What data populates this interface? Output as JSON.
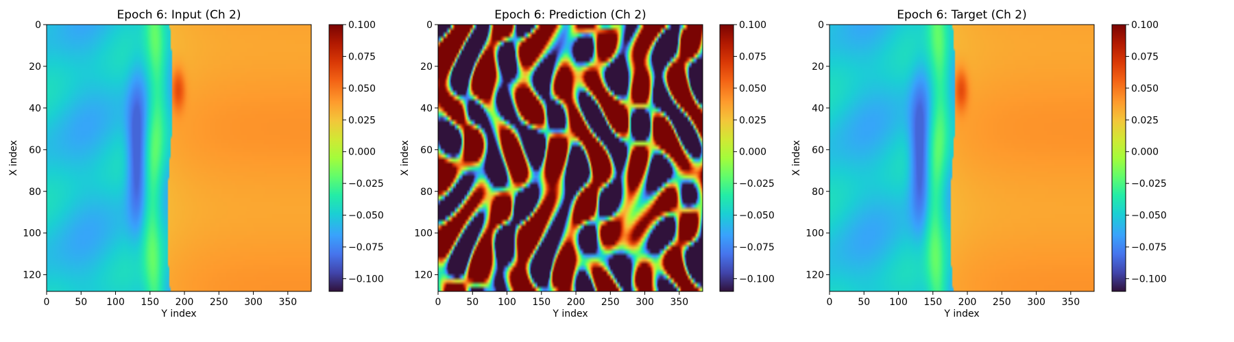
{
  "chart_data": [
    {
      "type": "heatmap",
      "title": "Epoch 6: Input (Ch 2)",
      "xlabel": "Y index",
      "ylabel": "X index",
      "xlim": [
        0,
        384
      ],
      "ylim": [
        128,
        0
      ],
      "xticks": [
        0,
        50,
        100,
        150,
        200,
        250,
        300,
        350
      ],
      "yticks": [
        0,
        20,
        40,
        60,
        80,
        100,
        120
      ],
      "colormap": "turbo",
      "color_range": [
        -0.11,
        0.1
      ],
      "colorbar_ticks": [
        "0.100",
        "0.075",
        "0.050",
        "0.025",
        "0.000",
        "−0.025",
        "−0.050",
        "−0.075",
        "−0.100"
      ],
      "colorbar_values": [
        0.1,
        0.075,
        0.05,
        0.025,
        0.0,
        -0.025,
        -0.05,
        -0.075,
        -0.1
      ],
      "field": "smooth"
    },
    {
      "type": "heatmap",
      "title": "Epoch 6: Prediction (Ch 2)",
      "xlabel": "Y index",
      "ylabel": "X index",
      "xlim": [
        0,
        384
      ],
      "ylim": [
        128,
        0
      ],
      "xticks": [
        0,
        50,
        100,
        150,
        200,
        250,
        300,
        350
      ],
      "yticks": [
        0,
        20,
        40,
        60,
        80,
        100,
        120
      ],
      "colormap": "turbo",
      "color_range": [
        -0.11,
        0.1
      ],
      "colorbar_ticks": [
        "0.100",
        "0.075",
        "0.050",
        "0.025",
        "0.000",
        "−0.025",
        "−0.050",
        "−0.075",
        "−0.100"
      ],
      "colorbar_values": [
        0.1,
        0.075,
        0.05,
        0.025,
        0.0,
        -0.025,
        -0.05,
        -0.075,
        -0.1
      ],
      "field": "noisy"
    },
    {
      "type": "heatmap",
      "title": "Epoch 6: Target (Ch 2)",
      "xlabel": "Y index",
      "ylabel": "X index",
      "xlim": [
        0,
        384
      ],
      "ylim": [
        128,
        0
      ],
      "xticks": [
        0,
        50,
        100,
        150,
        200,
        250,
        300,
        350
      ],
      "yticks": [
        0,
        20,
        40,
        60,
        80,
        100,
        120
      ],
      "colormap": "turbo",
      "color_range": [
        -0.11,
        0.1
      ],
      "colorbar_ticks": [
        "0.100",
        "0.075",
        "0.050",
        "0.025",
        "0.000",
        "−0.025",
        "−0.050",
        "−0.075",
        "−0.100"
      ],
      "colorbar_values": [
        0.1,
        0.075,
        0.05,
        0.025,
        0.0,
        -0.025,
        -0.05,
        -0.075,
        -0.1
      ],
      "field": "smooth"
    }
  ]
}
